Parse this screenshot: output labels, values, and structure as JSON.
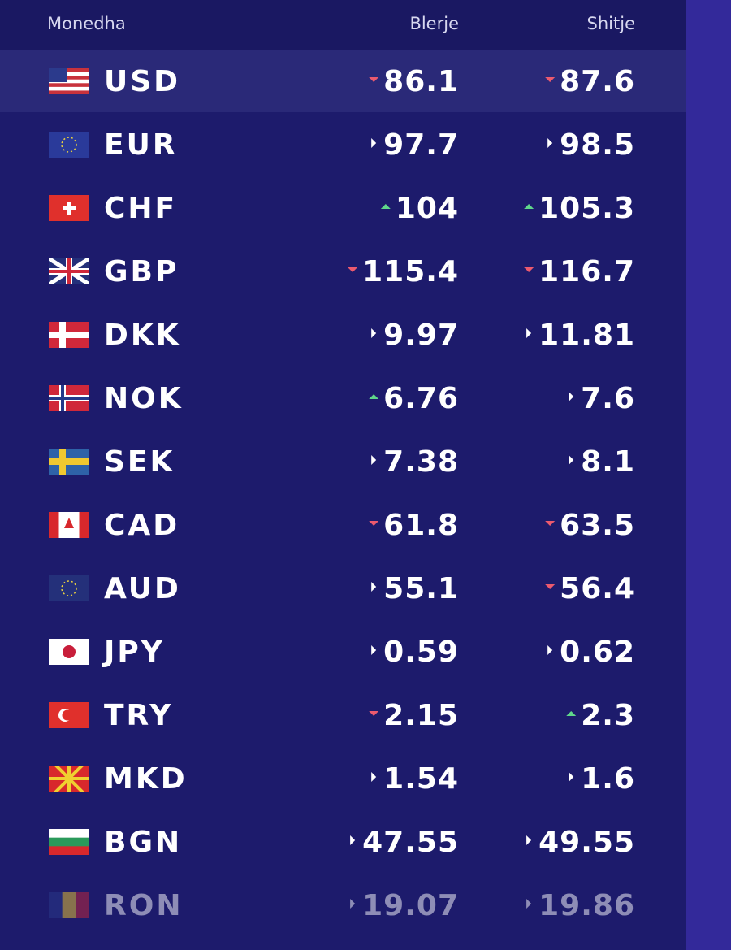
{
  "header": {
    "columns": [
      "Monedha",
      "Blerje",
      "Shitje"
    ]
  },
  "rows": [
    {
      "code": "USD",
      "buy": 86.1,
      "buy_trend": "down",
      "sell": 87.6,
      "sell_trend": "down"
    },
    {
      "code": "EUR",
      "buy": 97.7,
      "buy_trend": "flat",
      "sell": 98.5,
      "sell_trend": "flat"
    },
    {
      "code": "CHF",
      "buy": 104,
      "buy_trend": "up",
      "sell": 105.3,
      "sell_trend": "up"
    },
    {
      "code": "GBP",
      "buy": 115.4,
      "buy_trend": "down",
      "sell": 116.7,
      "sell_trend": "down"
    },
    {
      "code": "DKK",
      "buy": 9.97,
      "buy_trend": "flat",
      "sell": 11.81,
      "sell_trend": "flat"
    },
    {
      "code": "NOK",
      "buy": 6.76,
      "buy_trend": "up",
      "sell": 7.6,
      "sell_trend": "flat"
    },
    {
      "code": "SEK",
      "buy": 7.38,
      "buy_trend": "flat",
      "sell": 8.1,
      "sell_trend": "flat"
    },
    {
      "code": "CAD",
      "buy": 61.8,
      "buy_trend": "down",
      "sell": 63.5,
      "sell_trend": "down"
    },
    {
      "code": "AUD",
      "buy": 55.1,
      "buy_trend": "flat",
      "sell": 56.4,
      "sell_trend": "down"
    },
    {
      "code": "JPY",
      "buy": 0.59,
      "buy_trend": "flat",
      "sell": 0.62,
      "sell_trend": "flat"
    },
    {
      "code": "TRY",
      "buy": 2.15,
      "buy_trend": "down",
      "sell": 2.3,
      "sell_trend": "up"
    },
    {
      "code": "MKD",
      "buy": 1.54,
      "buy_trend": "flat",
      "sell": 1.6,
      "sell_trend": "flat"
    },
    {
      "code": "BGN",
      "buy": 47.55,
      "buy_trend": "flat",
      "sell": 49.55,
      "sell_trend": "flat"
    },
    {
      "code": "RON",
      "buy": 19.07,
      "buy_trend": "flat",
      "sell": 19.86,
      "sell_trend": "flat"
    }
  ]
}
